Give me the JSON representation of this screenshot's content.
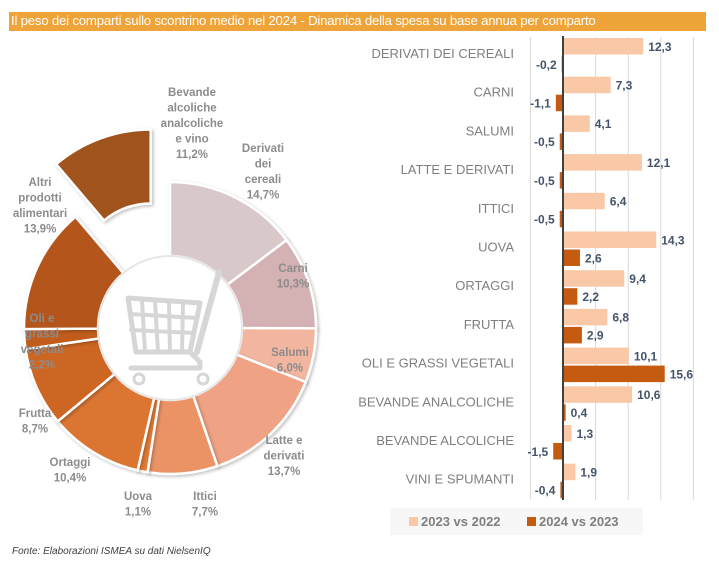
{
  "header": {
    "title": "Il peso dei comparti sullo scontrino medio nel 2024 - Dinamica della spesa su base annua per comparto"
  },
  "source": "Fonte: Elaborazioni ISMEA su dati NielsenIQ",
  "chart_data": [
    {
      "type": "pie",
      "variant": "donut",
      "title": "Il peso dei comparti sullo scontrino medio nel 2024",
      "center_icon": "shopping-cart-icon",
      "exploded_slice": "Bevande alcoliche analcoliche e vino",
      "unit": "%",
      "slices": [
        {
          "name": "Derivati dei cereali",
          "label_lines": [
            "Derivati",
            "dei",
            "cereali",
            "14,7%"
          ],
          "value": 14.7,
          "color": "#D9C8C9"
        },
        {
          "name": "Carni",
          "label_lines": [
            "Carni",
            "10,3%"
          ],
          "value": 10.3,
          "color": "#D4B1B2"
        },
        {
          "name": "Salumi",
          "label_lines": [
            "Salumi",
            "6,0%"
          ],
          "value": 6.0,
          "color": "#F2B5A0"
        },
        {
          "name": "Latte e derivati",
          "label_lines": [
            "Latte e",
            "derivati",
            "13,7%"
          ],
          "value": 13.7,
          "color": "#EFA284"
        },
        {
          "name": "Ittici",
          "label_lines": [
            "Ittici",
            "7,7%"
          ],
          "value": 7.7,
          "color": "#EC9366"
        },
        {
          "name": "Uova",
          "label_lines": [
            "Uova",
            "1,1%"
          ],
          "value": 1.1,
          "color": "#E37A35"
        },
        {
          "name": "Ortaggi",
          "label_lines": [
            "Ortaggi",
            "10,4%"
          ],
          "value": 10.4,
          "color": "#DC7430"
        },
        {
          "name": "Frutta",
          "label_lines": [
            "Frutta",
            "8,7%"
          ],
          "value": 8.7,
          "color": "#CD6624"
        },
        {
          "name": "Oli e grassi vegetali",
          "label_lines": [
            "Oli e",
            "grassi",
            "vegetali",
            "2,2%"
          ],
          "value": 2.2,
          "color": "#C15C1C"
        },
        {
          "name": "Altri prodotti alimentari",
          "label_lines": [
            "Altri",
            "prodotti",
            "alimentari",
            "13,9%"
          ],
          "value": 13.9,
          "color": "#B4561C"
        },
        {
          "name": "Bevande alcoliche analcoliche e vino",
          "label_lines": [
            "Bevande",
            "alcoliche",
            "analcoliche",
            "e vino",
            "11,2%"
          ],
          "value": 11.2,
          "color": "#A0521D"
        }
      ]
    },
    {
      "type": "bar",
      "orientation": "horizontal",
      "title": "Dinamica della spesa su base annua per comparto",
      "xlabel": "",
      "ylabel": "",
      "xlim": [
        -5,
        20
      ],
      "grid": true,
      "gridlines_at": [
        -5,
        0,
        5,
        10,
        15,
        20
      ],
      "legend_position": "bottom",
      "categories": [
        "DERIVATI DEI CEREALI",
        "CARNI",
        "SALUMI",
        "LATTE E DERIVATI",
        "ITTICI",
        "UOVA",
        "ORTAGGI",
        "FRUTTA",
        "OLI E GRASSI VEGETALI",
        "BEVANDE ANALCOLICHE",
        "BEVANDE ALCOLICHE",
        "VINI E SPUMANTI"
      ],
      "series": [
        {
          "name": "2023 vs 2022",
          "color": "#F8C8A7",
          "values": [
            12.3,
            7.3,
            4.1,
            12.1,
            6.4,
            14.3,
            9.4,
            6.8,
            10.1,
            10.6,
            1.3,
            1.9
          ],
          "labels": [
            "12,3",
            "7,3",
            "4,1",
            "12,1",
            "6,4",
            "14,3",
            "9,4",
            "6,8",
            "10,1",
            "10,6",
            "1,3",
            "1,9"
          ]
        },
        {
          "name": "2024 vs 2023",
          "color": "#C55A11",
          "values": [
            -0.2,
            -1.1,
            -0.5,
            -0.5,
            -0.5,
            2.6,
            2.2,
            2.9,
            15.6,
            0.4,
            -1.5,
            -0.4
          ],
          "labels": [
            "-0,2",
            "-1,1",
            "-0,5",
            "-0,5",
            "-0,5",
            "2,6",
            "2,2",
            "2,9",
            "15,6",
            "0,4",
            "-1,5",
            "-0,4"
          ]
        }
      ]
    }
  ]
}
